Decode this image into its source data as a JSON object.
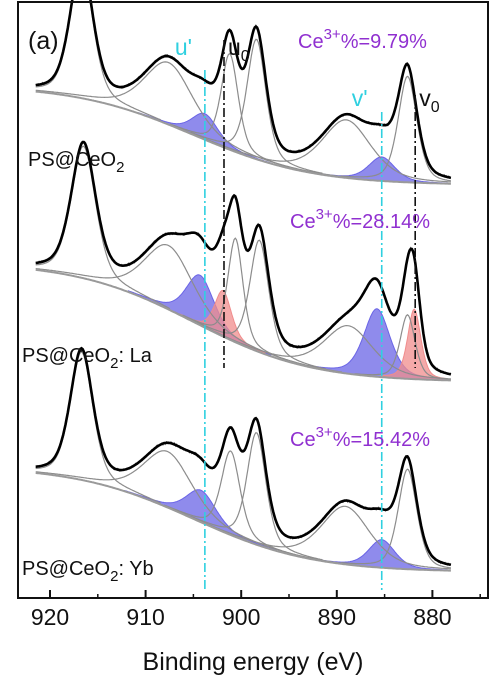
{
  "chart_data": {
    "type": "line",
    "title": "",
    "panel_label": "(a)",
    "xlabel": "Binding energy (eV)",
    "ylabel": "",
    "xlim": [
      925,
      875
    ],
    "x_reversed": true,
    "xticks": [
      "920",
      "910",
      "900",
      "890",
      "880"
    ],
    "grid": false,
    "colors": {
      "measured": "#111111",
      "fit": "#000000",
      "component": "#8c8c8c",
      "background": "#9a9a9a",
      "ce3_fill": "#6a64e6",
      "ce3_alt_fill": "#f08c8c",
      "u_prime_line": "#2fd0e0",
      "v_prime_line": "#2fd0e0",
      "reference_line": "#111111",
      "ce_text": "#9030d0",
      "prime_text": "#2fd0e0"
    },
    "reference_lines": [
      {
        "label": "u'",
        "x": 903.8,
        "color": "#2fd0e0"
      },
      {
        "label": "u",
        "sub": "0",
        "x": 901.8,
        "color": "#111111"
      },
      {
        "label": "v'",
        "x": 885.3,
        "color": "#2fd0e0"
      },
      {
        "label": "v",
        "sub": "0",
        "x": 881.8,
        "color": "#111111"
      }
    ],
    "series": [
      {
        "sample_label_main": "PS@CeO",
        "sample_label_sub": "2",
        "sample_label_suffix": "",
        "ce3_label_base": "Ce",
        "ce3_label_sup": "3+",
        "ce3_label_value": "%=9.79%",
        "ce3_percent": 9.79,
        "peaks": [
          {
            "center": 916.7,
            "height": 134,
            "width": 1.2
          },
          {
            "center": 907.6,
            "height": 62,
            "width": 2.6
          },
          {
            "center": 901.2,
            "height": 96,
            "width": 0.9
          },
          {
            "center": 898.4,
            "height": 120,
            "width": 1.0
          },
          {
            "center": 889.0,
            "height": 58,
            "width": 2.6
          },
          {
            "center": 882.6,
            "height": 106,
            "width": 1.0
          }
        ],
        "ce3_peaks": [
          {
            "center": 903.8,
            "height": 26,
            "width": 1.4,
            "fill": "#6a64e6"
          },
          {
            "center": 885.3,
            "height": 24,
            "width": 1.4,
            "fill": "#6a64e6"
          }
        ]
      },
      {
        "sample_label_main": "PS@CeO",
        "sample_label_sub": "2",
        "sample_label_suffix": ": La",
        "ce3_label_base": "Ce",
        "ce3_label_sup": "3+",
        "ce3_label_value": "%=28.14%",
        "ce3_percent": 28.14,
        "peaks": [
          {
            "center": 916.5,
            "height": 132,
            "width": 1.3
          },
          {
            "center": 907.6,
            "height": 64,
            "width": 2.6
          },
          {
            "center": 900.6,
            "height": 104,
            "width": 0.8
          },
          {
            "center": 898.1,
            "height": 112,
            "width": 1.0
          },
          {
            "center": 888.8,
            "height": 48,
            "width": 2.6
          },
          {
            "center": 882.6,
            "height": 64,
            "width": 0.8
          }
        ],
        "ce3_peaks": [
          {
            "center": 904.3,
            "height": 50,
            "width": 1.5,
            "fill": "#6a64e6"
          },
          {
            "center": 901.9,
            "height": 46,
            "width": 0.9,
            "fill": "#f08c8c"
          },
          {
            "center": 885.8,
            "height": 68,
            "width": 1.4,
            "fill": "#6a64e6"
          },
          {
            "center": 881.9,
            "height": 70,
            "width": 0.7,
            "fill": "#f08c8c"
          }
        ]
      },
      {
        "sample_label_main": "PS@CeO",
        "sample_label_sub": "2",
        "sample_label_suffix": ": Yb",
        "ce3_label_base": "Ce",
        "ce3_label_sup": "3+",
        "ce3_label_value": "%=15.42%",
        "ce3_percent": 15.42,
        "peaks": [
          {
            "center": 916.7,
            "height": 128,
            "width": 1.2
          },
          {
            "center": 907.7,
            "height": 56,
            "width": 2.6
          },
          {
            "center": 901.1,
            "height": 84,
            "width": 1.0
          },
          {
            "center": 898.4,
            "height": 112,
            "width": 1.0
          },
          {
            "center": 889.1,
            "height": 58,
            "width": 2.6
          },
          {
            "center": 882.6,
            "height": 100,
            "width": 1.0
          }
        ],
        "ce3_peaks": [
          {
            "center": 904.2,
            "height": 32,
            "width": 1.6,
            "fill": "#6a64e6"
          },
          {
            "center": 885.3,
            "height": 28,
            "width": 1.4,
            "fill": "#6a64e6"
          }
        ]
      }
    ]
  }
}
